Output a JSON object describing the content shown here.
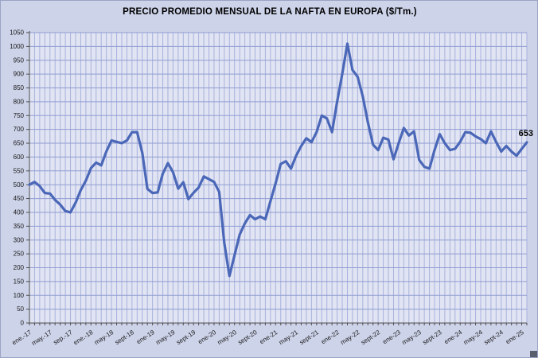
{
  "chart_data": {
    "type": "line",
    "title": "PRECIO PROMEDIO MENSUAL DE LA NAFTA EN EUROPA ($/Tm.)",
    "xlabel": "",
    "ylabel": "",
    "ylim": [
      0,
      1050
    ],
    "ytick_step": 50,
    "grid": "both, dense monthly vertical gridlines",
    "legend": false,
    "x_tick_labels": [
      "ene.-17",
      "may.-17",
      "sep.-17",
      "ene.-18",
      "may-18",
      "sept-18",
      "ene-19",
      "may-19",
      "sept-19",
      "ene-20",
      "may-20",
      "sept-20",
      "ene-21",
      "may-21",
      "sept-21",
      "ene-22",
      "may-22",
      "sept-22",
      "ene-23",
      "may-23",
      "sept-23",
      "ene-24",
      "may-24",
      "sept-24",
      "ene-25"
    ],
    "x_tick_every_n_months": 4,
    "end_point_label": "653",
    "series": [
      {
        "name": "Precio promedio mensual nafta Europa ($/Tm.)",
        "first_month": "ene-17",
        "last_month": "feb-25",
        "values": [
          500,
          510,
          495,
          470,
          468,
          445,
          428,
          405,
          400,
          435,
          480,
          515,
          560,
          580,
          570,
          620,
          660,
          655,
          650,
          660,
          690,
          690,
          615,
          485,
          470,
          472,
          540,
          578,
          545,
          486,
          509,
          448,
          471,
          490,
          530,
          520,
          510,
          474,
          290,
          170,
          245,
          320,
          360,
          390,
          375,
          385,
          375,
          440,
          505,
          575,
          585,
          558,
          605,
          640,
          668,
          654,
          690,
          750,
          740,
          690,
          800,
          900,
          1010,
          915,
          890,
          820,
          725,
          645,
          625,
          670,
          663,
          592,
          650,
          705,
          678,
          693,
          590,
          565,
          558,
          625,
          683,
          650,
          625,
          630,
          655,
          690,
          688,
          675,
          665,
          650,
          693,
          655,
          620,
          640,
          620,
          605,
          630,
          653
        ]
      }
    ],
    "colors": {
      "line": "#4a67b8",
      "plot_bg": "#e1e4f2",
      "outer_bg": "#cdd3e9",
      "grid_vertical": "#a9b2dd",
      "grid_horizontal": "#8f9dd3",
      "axis": "#4d4d4d",
      "tick_label": "#1a1a1a",
      "title": "#000000",
      "end_label": "#000000"
    }
  }
}
